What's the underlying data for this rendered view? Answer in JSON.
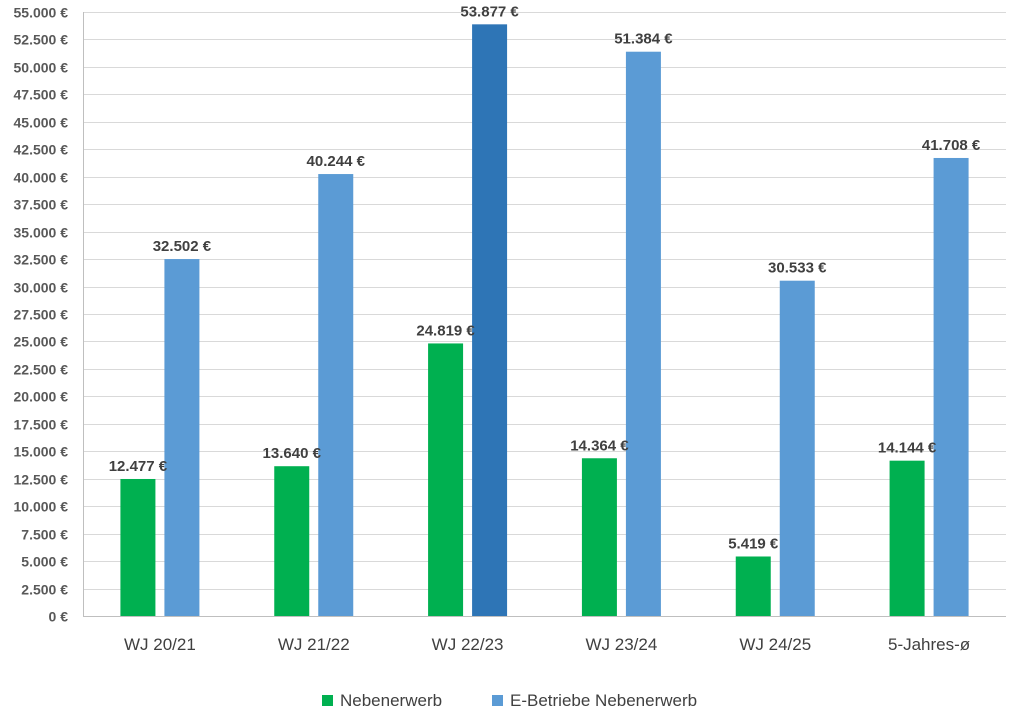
{
  "chart_data": {
    "type": "bar",
    "categories": [
      "WJ 20/21",
      "WJ 21/22",
      "WJ 22/23",
      "WJ 23/24",
      "WJ 24/25",
      "5-Jahres-ø"
    ],
    "series": [
      {
        "name": "Nebenerwerb",
        "color": "#00b050",
        "values": [
          12477,
          13640,
          24819,
          14364,
          5419,
          14144
        ],
        "labels": [
          "12.477 €",
          "13.640 €",
          "24.819 €",
          "14.364 €",
          "5.419 €",
          "14.144 €"
        ]
      },
      {
        "name": "E-Betriebe Nebenerwerb",
        "color": "#5b9bd5",
        "highlight_color": "#2e75b6",
        "highlight_index": 2,
        "values": [
          32502,
          40244,
          53877,
          51384,
          30533,
          41708
        ],
        "labels": [
          "32.502 €",
          "40.244 €",
          "53.877 €",
          "51.384 €",
          "30.533 €",
          "41.708 €"
        ]
      }
    ],
    "ylim": [
      0,
      55000
    ],
    "y_ticks": [
      {
        "value": 0,
        "label": "0 €"
      },
      {
        "value": 2500,
        "label": "2.500 €"
      },
      {
        "value": 5000,
        "label": "5.000 €"
      },
      {
        "value": 7500,
        "label": "7.500 €"
      },
      {
        "value": 10000,
        "label": "10.000 €"
      },
      {
        "value": 12500,
        "label": "12.500 €"
      },
      {
        "value": 15000,
        "label": "15.000 €"
      },
      {
        "value": 17500,
        "label": "17.500 €"
      },
      {
        "value": 20000,
        "label": "20.000 €"
      },
      {
        "value": 22500,
        "label": "22.500 €"
      },
      {
        "value": 25000,
        "label": "25.000 €"
      },
      {
        "value": 27500,
        "label": "27.500 €"
      },
      {
        "value": 30000,
        "label": "30.000 €"
      },
      {
        "value": 32500,
        "label": "32.500 €"
      },
      {
        "value": 35000,
        "label": "35.000 €"
      },
      {
        "value": 37500,
        "label": "37.500 €"
      },
      {
        "value": 40000,
        "label": "40.000 €"
      },
      {
        "value": 42500,
        "label": "42.500 €"
      },
      {
        "value": 45000,
        "label": "45.000 €"
      },
      {
        "value": 47500,
        "label": "47.500 €"
      },
      {
        "value": 50000,
        "label": "50.000 €"
      },
      {
        "value": 52500,
        "label": "52.500 €"
      },
      {
        "value": 55000,
        "label": "55.000 €"
      }
    ],
    "grid": true,
    "legend_position": "bottom"
  }
}
